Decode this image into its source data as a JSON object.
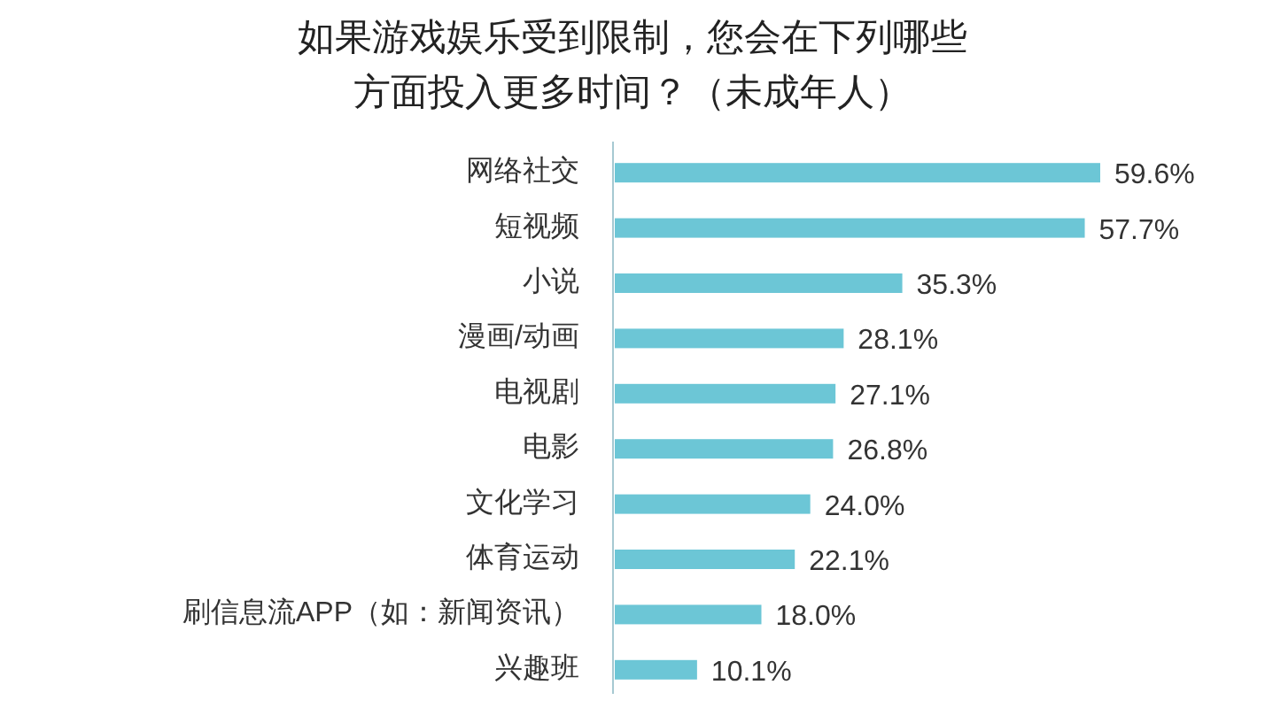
{
  "chart_data": {
    "type": "bar",
    "orientation": "horizontal",
    "title": "如果游戏娱乐受到限制，您会在下列哪些方面投入更多时间？（未成年人）",
    "categories": [
      "网络社交",
      "短视频",
      "小说",
      "漫画/动画",
      "电视剧",
      "电影",
      "文化学习",
      "体育运动",
      "刷信息流APP（如：新闻资讯）",
      "兴趣班"
    ],
    "values": [
      59.6,
      57.7,
      35.3,
      28.1,
      27.1,
      26.8,
      24.0,
      22.1,
      18.0,
      10.1
    ],
    "value_labels": [
      "59.6%",
      "57.7%",
      "35.3%",
      "28.1%",
      "27.1%",
      "26.8%",
      "24.0%",
      "22.1%",
      "18.0%",
      "10.1%"
    ],
    "color": "#6cc6d6"
  }
}
